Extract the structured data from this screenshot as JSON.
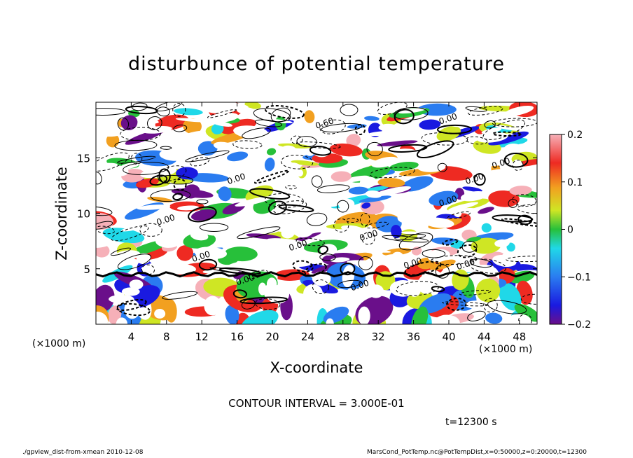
{
  "chart_data": {
    "type": "heatmap",
    "title": "disturbunce of potential temperature",
    "xlabel": "X-coordinate",
    "ylabel": "Z-coordinate",
    "x_unit_left": "(×1000 m)",
    "x_unit_right": "(×1000 m)",
    "x_ticks": [
      "4",
      "8",
      "12",
      "16",
      "20",
      "24",
      "28",
      "32",
      "36",
      "40",
      "44",
      "48"
    ],
    "x_tick_values": [
      4,
      8,
      12,
      16,
      20,
      24,
      28,
      32,
      36,
      40,
      44,
      48
    ],
    "y_ticks": [
      "5",
      "10",
      "15"
    ],
    "y_tick_values": [
      5,
      10,
      15
    ],
    "xlim": [
      0,
      50
    ],
    "ylim": [
      0,
      20
    ],
    "colorbar": {
      "ticks": [
        "0.2",
        "0.1",
        "0",
        "−0.1",
        "−0.2"
      ],
      "tick_values": [
        0.2,
        0.1,
        0,
        -0.1,
        -0.2
      ],
      "range": [
        -0.2,
        0.2
      ],
      "colors": [
        "#6a0f8a",
        "#1a1ae0",
        "#2a7cf0",
        "#20d8e8",
        "#27c03a",
        "#cfe624",
        "#f2a020",
        "#ee2a22",
        "#f6b0b8",
        "#ffffff"
      ]
    },
    "contour_labels": [
      "0.00",
      "0.00",
      "0.60",
      "0.00",
      "0.00",
      "0.00",
      "0.00",
      "0.00",
      "0.00",
      "0.00",
      "0.00",
      "0.00",
      "0.00",
      "0.00"
    ],
    "contour_interval_text": "CONTOUR INTERVAL = 3.000E-01"
  },
  "time_label": "t=12300 s",
  "footer_left": "./gpview_dist-from-xmean  2010-12-08",
  "footer_right": "MarsCond_PotTemp.nc@PotTempDist,x=0:50000,z=0:20000,t=12300"
}
